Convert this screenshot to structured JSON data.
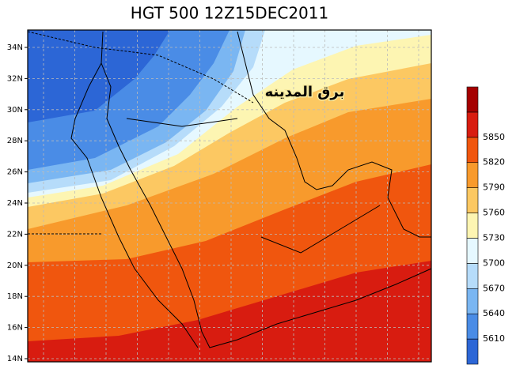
{
  "title": "HGT 500 12Z15DEC2011",
  "watermark": "برق المدينه",
  "latitude_labels": [
    "34N",
    "32N",
    "30N",
    "28N",
    "26N",
    "24N",
    "22N",
    "20N",
    "18N",
    "16N",
    "14N"
  ],
  "colorbar": {
    "levels": [
      5610,
      5640,
      5670,
      5700,
      5730,
      5760,
      5790,
      5820,
      5850
    ],
    "colors": [
      "#2c66d6",
      "#4a8ce6",
      "#7ab6f2",
      "#b6dcfa",
      "#e6f8ff",
      "#fdf5b2",
      "#fcc862",
      "#f89a2c",
      "#f0560e",
      "#d81c10",
      "#a50000"
    ]
  }
}
